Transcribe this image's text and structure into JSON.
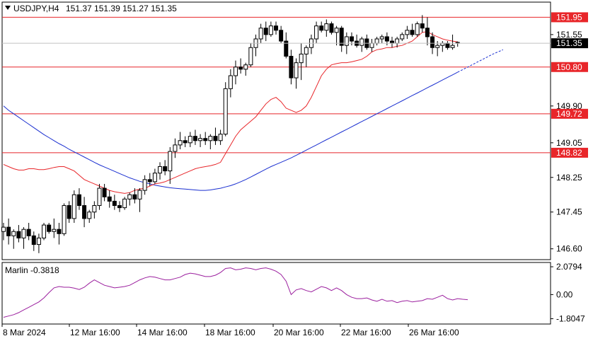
{
  "chart_data": [
    {
      "type": "candlestick",
      "header": {
        "symbol_timeframe": "USDJPY,H4",
        "ohlc": "151.37 151.39 151.27 151.35"
      },
      "y_ticks": [
        "151.95",
        "151.55",
        "150.80",
        "149.90",
        "149.72",
        "149.05",
        "148.82",
        "148.25",
        "147.45",
        "146.60"
      ],
      "ylim": [
        146.35,
        152.3
      ],
      "current_price": 151.35,
      "current_price_label": "151.35",
      "horizontal_levels": [
        {
          "value": 151.95,
          "label": "151.95",
          "color": "#e8262a"
        },
        {
          "value": 150.8,
          "label": "150.80",
          "color": "#e8262a"
        },
        {
          "value": 149.72,
          "label": "149.72",
          "color": "#e8262a"
        },
        {
          "value": 148.82,
          "label": "148.82",
          "color": "#e8262a"
        }
      ],
      "x_ticks": [
        "8 Mar 2024",
        "12 Mar 16:00",
        "14 Mar 16:00",
        "18 Mar 16:00",
        "20 Mar 16:00",
        "22 Mar 16:00",
        "26 Mar 16:00"
      ],
      "candles": [
        [
          147.0,
          147.2,
          146.8,
          147.1
        ],
        [
          147.1,
          147.3,
          146.7,
          146.9
        ],
        [
          146.9,
          147.05,
          146.6,
          147.0
        ],
        [
          147.0,
          147.15,
          146.75,
          146.85
        ],
        [
          146.85,
          147.1,
          146.6,
          147.05
        ],
        [
          147.05,
          147.2,
          146.8,
          146.9
        ],
        [
          146.9,
          147.0,
          146.55,
          146.7
        ],
        [
          146.7,
          146.95,
          146.5,
          146.85
        ],
        [
          146.85,
          147.2,
          146.8,
          147.15
        ],
        [
          147.15,
          147.2,
          146.95,
          147.0
        ],
        [
          147.0,
          147.3,
          146.85,
          147.05
        ],
        [
          147.05,
          147.2,
          146.7,
          146.95
        ],
        [
          146.95,
          147.65,
          146.9,
          147.6
        ],
        [
          147.6,
          147.7,
          147.2,
          147.3
        ],
        [
          147.3,
          147.95,
          147.2,
          147.85
        ],
        [
          147.85,
          148.0,
          147.5,
          147.6
        ],
        [
          147.6,
          147.8,
          147.1,
          147.3
        ],
        [
          147.3,
          147.5,
          147.2,
          147.45
        ],
        [
          147.45,
          147.7,
          147.3,
          147.6
        ],
        [
          147.6,
          148.1,
          147.5,
          148.0
        ],
        [
          148.0,
          148.1,
          147.7,
          147.8
        ],
        [
          147.8,
          147.95,
          147.55,
          147.7
        ],
        [
          147.7,
          147.85,
          147.5,
          147.6
        ],
        [
          147.6,
          147.7,
          147.45,
          147.55
        ],
        [
          147.55,
          147.8,
          147.5,
          147.75
        ],
        [
          147.75,
          147.9,
          147.6,
          147.85
        ],
        [
          147.85,
          148.0,
          147.65,
          147.75
        ],
        [
          147.75,
          148.0,
          147.45,
          147.95
        ],
        [
          147.95,
          148.3,
          147.85,
          148.2
        ],
        [
          148.2,
          148.35,
          148.05,
          148.15
        ],
        [
          148.15,
          148.45,
          148.1,
          148.35
        ],
        [
          148.35,
          148.6,
          148.2,
          148.5
        ],
        [
          148.5,
          148.65,
          148.3,
          148.4
        ],
        [
          148.4,
          148.95,
          148.1,
          148.85
        ],
        [
          148.85,
          149.15,
          148.7,
          149.0
        ],
        [
          149.0,
          149.3,
          148.9,
          149.1
        ],
        [
          149.1,
          149.2,
          148.95,
          149.05
        ],
        [
          149.05,
          149.3,
          148.95,
          149.2
        ],
        [
          149.2,
          149.35,
          149.0,
          149.1
        ],
        [
          149.1,
          149.25,
          148.95,
          149.15
        ],
        [
          149.15,
          149.3,
          149.0,
          149.1
        ],
        [
          149.1,
          149.25,
          148.9,
          149.2
        ],
        [
          149.2,
          149.4,
          149.0,
          149.1
        ],
        [
          149.1,
          149.35,
          149.0,
          149.25
        ],
        [
          149.25,
          150.45,
          149.2,
          150.3
        ],
        [
          150.3,
          150.75,
          150.1,
          150.6
        ],
        [
          150.6,
          150.95,
          150.4,
          150.8
        ],
        [
          150.8,
          151.0,
          150.65,
          150.75
        ],
        [
          150.75,
          150.9,
          150.6,
          150.85
        ],
        [
          150.85,
          151.35,
          150.8,
          151.25
        ],
        [
          151.25,
          151.55,
          151.05,
          151.45
        ],
        [
          151.45,
          151.8,
          151.35,
          151.7
        ],
        [
          151.7,
          151.85,
          151.4,
          151.55
        ],
        [
          151.55,
          151.85,
          151.5,
          151.75
        ],
        [
          151.75,
          151.85,
          151.55,
          151.65
        ],
        [
          151.65,
          151.75,
          151.35,
          151.4
        ],
        [
          151.4,
          151.6,
          151.0,
          151.05
        ],
        [
          151.05,
          151.2,
          150.4,
          150.55
        ],
        [
          150.55,
          151.0,
          150.3,
          150.9
        ],
        [
          150.9,
          151.35,
          150.5,
          151.1
        ],
        [
          151.1,
          151.3,
          150.8,
          151.25
        ],
        [
          151.25,
          151.55,
          151.1,
          151.45
        ],
        [
          151.45,
          151.85,
          151.35,
          151.75
        ],
        [
          151.75,
          151.85,
          151.6,
          151.65
        ],
        [
          151.65,
          151.9,
          151.5,
          151.8
        ],
        [
          151.8,
          151.85,
          151.55,
          151.6
        ],
        [
          151.6,
          151.75,
          151.3,
          151.7
        ],
        [
          151.7,
          151.75,
          151.15,
          151.3
        ],
        [
          151.3,
          151.6,
          151.1,
          151.5
        ],
        [
          151.5,
          151.6,
          151.3,
          151.4
        ],
        [
          151.4,
          151.55,
          151.25,
          151.3
        ],
        [
          151.3,
          151.5,
          151.15,
          151.45
        ],
        [
          151.45,
          151.55,
          151.2,
          151.25
        ],
        [
          151.25,
          151.45,
          151.15,
          151.35
        ],
        [
          151.35,
          151.5,
          151.3,
          151.45
        ],
        [
          151.45,
          151.55,
          151.35,
          151.5
        ],
        [
          151.5,
          151.6,
          151.3,
          151.4
        ],
        [
          151.4,
          151.5,
          151.25,
          151.35
        ],
        [
          151.35,
          151.5,
          151.25,
          151.45
        ],
        [
          151.45,
          151.6,
          151.4,
          151.55
        ],
        [
          151.55,
          151.75,
          151.45,
          151.65
        ],
        [
          151.65,
          151.8,
          151.5,
          151.55
        ],
        [
          151.55,
          151.85,
          151.5,
          151.8
        ],
        [
          151.8,
          152.0,
          151.6,
          151.7
        ],
        [
          151.7,
          151.95,
          151.3,
          151.5
        ],
        [
          151.5,
          151.6,
          151.1,
          151.25
        ],
        [
          151.25,
          151.4,
          151.05,
          151.3
        ],
        [
          151.3,
          151.4,
          151.15,
          151.35
        ],
        [
          151.35,
          151.4,
          151.2,
          151.25
        ],
        [
          151.25,
          151.55,
          151.2,
          151.3
        ],
        [
          151.37,
          151.39,
          151.27,
          151.35
        ]
      ],
      "red_ma": [
        148.55,
        148.5,
        148.45,
        148.42,
        148.42,
        148.45,
        148.45,
        148.43,
        148.43,
        148.45,
        148.48,
        148.5,
        148.5,
        148.45,
        148.4,
        148.3,
        148.2,
        148.15,
        148.1,
        148.05,
        148.0,
        147.95,
        147.92,
        147.9,
        147.88,
        147.9,
        147.95,
        147.98,
        148.0,
        148.05,
        148.1,
        148.12,
        148.15,
        148.2,
        148.25,
        148.3,
        148.35,
        148.4,
        148.45,
        148.48,
        148.5,
        148.52,
        148.55,
        148.6,
        148.8,
        149.0,
        149.2,
        149.35,
        149.45,
        149.55,
        149.65,
        149.8,
        149.95,
        150.05,
        150.1,
        150.0,
        149.85,
        149.8,
        149.75,
        149.8,
        149.9,
        150.1,
        150.35,
        150.6,
        150.75,
        150.85,
        150.88,
        150.9,
        150.9,
        150.92,
        150.95,
        150.98,
        151.05,
        151.15,
        151.2,
        151.22,
        151.25,
        151.25,
        151.28,
        151.3,
        151.35,
        151.4,
        151.5,
        151.6,
        151.62,
        151.55,
        151.5,
        151.45,
        151.42,
        151.4,
        151.38
      ],
      "blue_ma": [
        149.9,
        149.8,
        149.72,
        149.64,
        149.56,
        149.48,
        149.4,
        149.32,
        149.24,
        149.17,
        149.1,
        149.03,
        148.97,
        148.9,
        148.84,
        148.78,
        148.72,
        148.66,
        148.6,
        148.54,
        148.49,
        148.44,
        148.39,
        148.34,
        148.29,
        148.24,
        148.2,
        148.16,
        148.13,
        148.1,
        148.07,
        148.05,
        148.03,
        148.01,
        148.0,
        147.99,
        147.98,
        147.97,
        147.96,
        147.95,
        147.95,
        147.96,
        147.98,
        148.0,
        148.03,
        148.06,
        148.1,
        148.15,
        148.2,
        148.26,
        148.32,
        148.38,
        148.44,
        148.5,
        148.55,
        148.6,
        148.65,
        148.7,
        148.76,
        148.82,
        148.88,
        148.94,
        149.0,
        149.06,
        149.12,
        149.18,
        149.24,
        149.3,
        149.36,
        149.42,
        149.48,
        149.54,
        149.6,
        149.66,
        149.72,
        149.78,
        149.84,
        149.9,
        149.96,
        150.02,
        150.08,
        150.14,
        150.2,
        150.26,
        150.32,
        150.38,
        150.44,
        150.5,
        150.56,
        150.62,
        150.68
      ],
      "blue_ma_projection": [
        150.68,
        150.74,
        150.8,
        150.86,
        150.92,
        150.98,
        151.04,
        151.1,
        151.15,
        151.2
      ],
      "colors": {
        "candle": "#000000",
        "bull_body": "#ffffff",
        "bear_body": "#000000",
        "red_ma": "#e8262a",
        "blue_ma": "#1a2fd0",
        "oscillator": "#9b1f9e",
        "level": "#e8262a",
        "price_tag_bg": "#000000"
      }
    },
    {
      "type": "line",
      "name": "Marlin",
      "label": "Marlin -0.3818",
      "y_ticks": [
        "2.0794",
        "0.00",
        "-1.8047"
      ],
      "ylim": [
        -2.2,
        2.4
      ],
      "values": [
        -1.7,
        -1.6,
        -1.5,
        -1.35,
        -1.15,
        -0.95,
        -0.75,
        -0.55,
        -0.25,
        0.15,
        0.5,
        0.6,
        0.55,
        0.55,
        0.48,
        0.38,
        0.55,
        0.85,
        1.1,
        0.9,
        0.7,
        0.6,
        0.5,
        0.55,
        0.6,
        0.7,
        0.9,
        1.1,
        1.25,
        1.35,
        1.3,
        1.2,
        1.1,
        1.1,
        1.2,
        1.3,
        1.5,
        1.6,
        1.55,
        1.45,
        1.35,
        1.35,
        1.45,
        1.65,
        1.95,
        2.0,
        1.85,
        1.9,
        2.0,
        1.95,
        1.85,
        1.95,
        2.0,
        1.9,
        1.75,
        1.5,
        1.0,
        0.0,
        0.35,
        0.45,
        0.3,
        0.2,
        0.4,
        0.6,
        0.5,
        0.3,
        0.5,
        0.3,
        0.0,
        -0.2,
        -0.3,
        -0.3,
        -0.25,
        -0.4,
        -0.5,
        -0.35,
        -0.5,
        -0.45,
        -0.6,
        -0.5,
        -0.45,
        -0.55,
        -0.5,
        -0.45,
        -0.3,
        -0.35,
        -0.2,
        -0.05,
        -0.3,
        -0.4,
        -0.3,
        -0.35,
        -0.38
      ]
    }
  ]
}
